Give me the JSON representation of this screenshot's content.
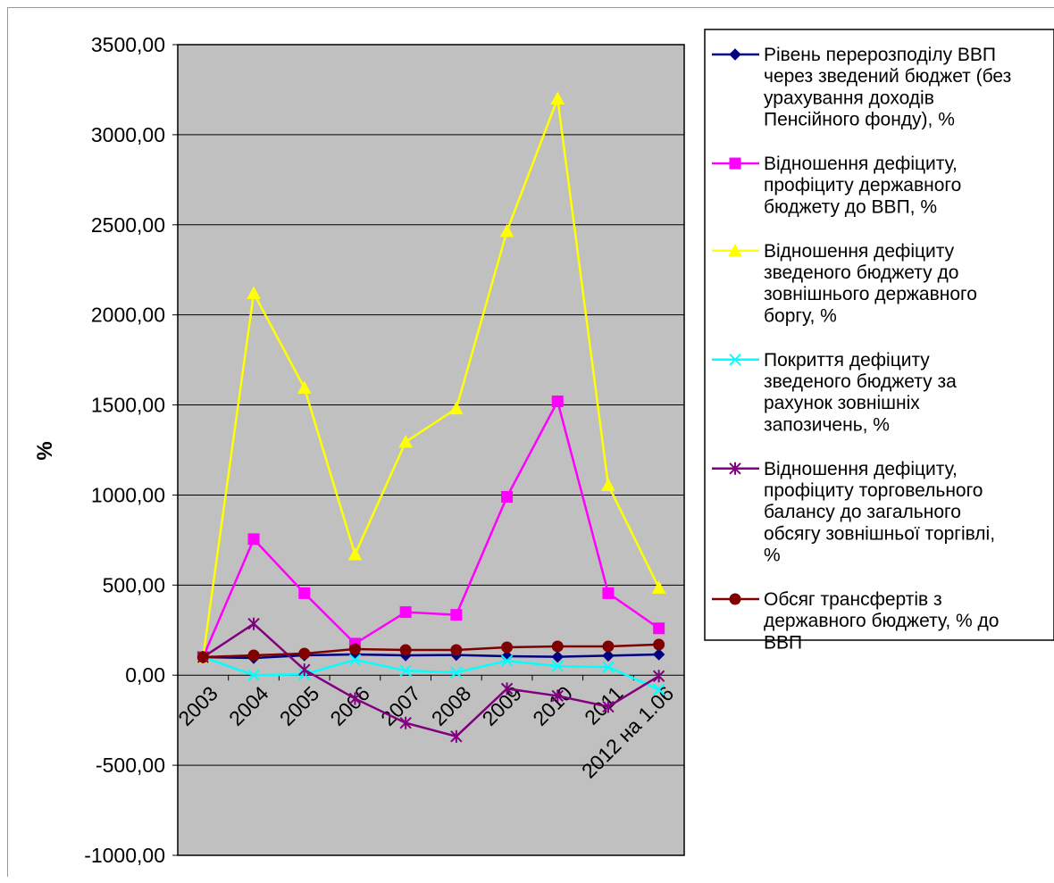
{
  "chart_data": {
    "type": "line",
    "ylabel": "%",
    "xlabel": "",
    "title": "",
    "ylim": [
      -1000,
      3500
    ],
    "ytick_step": 500,
    "ytick_labels": [
      "3500,00",
      "3000,00",
      "2500,00",
      "2000,00",
      "1500,00",
      "1000,00",
      "500,00",
      "0,00",
      "-500,00",
      "-1000,00"
    ],
    "categories": [
      "2003",
      "2004",
      "2005",
      "2006",
      "2007",
      "2008",
      "2009",
      "2010",
      "2011",
      "2012 на 1.06"
    ],
    "grid": true,
    "legend_position": "right",
    "plot_bg": "#c0c0c0",
    "series": [
      {
        "name": "Рівень перерозподілу ВВП через зведений бюджет (без урахування доходів Пенсійного фонду), %",
        "color": "#000080",
        "marker": "diamond",
        "values": [
          100,
          95,
          110,
          115,
          110,
          112,
          105,
          102,
          108,
          115
        ]
      },
      {
        "name": "Відношення дефіциту, профіциту державного бюджету  до ВВП, %",
        "color": "#ff00ff",
        "marker": "square",
        "values": [
          100,
          755,
          455,
          175,
          350,
          335,
          990,
          1520,
          455,
          260
        ]
      },
      {
        "name": "Відношення дефіциту зведеного бюджету до зовнішнього державного боргу, %",
        "color": "#ffff00",
        "marker": "triangle",
        "values": [
          100,
          2120,
          1595,
          670,
          1295,
          1480,
          2465,
          3200,
          1055,
          485
        ]
      },
      {
        "name": "Покриття дефіциту зведеного бюджету за рахунок зовнішніх запозичень, %",
        "color": "#00ffff",
        "marker": "x",
        "values": [
          100,
          0,
          5,
          85,
          25,
          15,
          80,
          50,
          45,
          -80
        ]
      },
      {
        "name": "Відношення дефіциту, профіциту торговельного балансу до загального обсягу зовнішньої торгівлі, %",
        "color": "#800080",
        "marker": "star",
        "values": [
          100,
          285,
          30,
          -130,
          -265,
          -340,
          -75,
          -115,
          -175,
          -5
        ]
      },
      {
        "name": "Обсяг трансфертів з державного бюджету, % до ВВП",
        "color": "#800000",
        "marker": "circle",
        "values": [
          100,
          110,
          120,
          145,
          140,
          140,
          155,
          160,
          160,
          170
        ]
      }
    ],
    "legend_lines": [
      [
        "Рівень перерозподілу ВВП",
        "через зведений бюджет (без",
        "урахування доходів",
        "Пенсійного фонду), %"
      ],
      [
        "Відношення дефіциту,",
        "профіциту державного",
        "бюджету  до ВВП, %"
      ],
      [
        "Відношення дефіциту",
        "зведеного бюджету до",
        "зовнішнього державного",
        "боргу, %"
      ],
      [
        "Покриття дефіциту",
        "зведеного бюджету за",
        "рахунок зовнішніх",
        "запозичень, %"
      ],
      [
        "Відношення дефіциту,",
        "профіциту торговельного",
        "балансу до загального",
        "обсягу зовнішньої торгівлі,",
        "%"
      ],
      [
        "Обсяг трансфертів з",
        "державного бюджету, % до",
        "ВВП"
      ]
    ]
  }
}
